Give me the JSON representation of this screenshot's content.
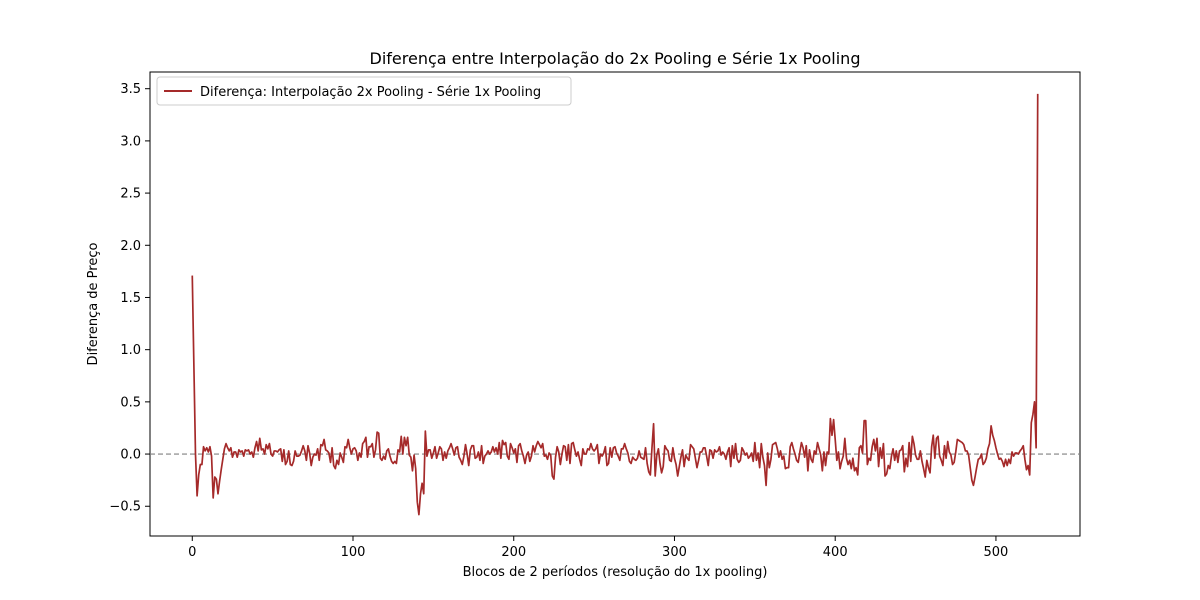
{
  "chart_data": {
    "type": "line",
    "title": "Diferença entre Interpolação do 2x Pooling e Série 1x Pooling",
    "xlabel": "Blocos de 2 períodos (resolução do 1x pooling)",
    "ylabel": "Diferença de Preço",
    "xlim": [
      -26.3,
      552.3
    ],
    "ylim": [
      -0.785,
      3.66
    ],
    "xticks": [
      0,
      100,
      200,
      300,
      400,
      500
    ],
    "yticks": [
      -0.5,
      0.0,
      0.5,
      1.0,
      1.5,
      2.0,
      2.5,
      3.0,
      3.5
    ],
    "grid": false,
    "legend_position": "upper-left",
    "reference_line": {
      "y": 0.0,
      "style": "dashed",
      "color": "#808080"
    },
    "series": [
      {
        "name": "Diferença: Interpolação 2x Pooling - Série 1x Pooling",
        "color": "#a52a2a",
        "x": [
          0,
          1,
          2,
          3,
          4,
          5,
          6,
          7,
          8,
          9,
          10,
          11,
          12,
          13,
          14,
          15,
          16,
          17,
          18,
          19,
          20,
          21,
          22,
          23,
          24,
          25,
          26,
          27,
          28,
          29,
          30,
          31,
          32,
          33,
          34,
          35,
          36,
          37,
          38,
          39,
          40,
          41,
          42,
          43,
          44,
          45,
          46,
          47,
          48,
          49,
          50,
          51,
          52,
          53,
          54,
          55,
          56,
          57,
          58,
          59,
          60,
          61,
          62,
          63,
          64,
          65,
          66,
          67,
          68,
          69,
          70,
          71,
          72,
          73,
          74,
          75,
          76,
          77,
          78,
          79,
          80,
          81,
          82,
          83,
          84,
          85,
          86,
          87,
          88,
          89,
          90,
          91,
          92,
          93,
          94,
          95,
          96,
          97,
          98,
          99,
          100,
          101,
          102,
          103,
          104,
          105,
          106,
          107,
          108,
          109,
          110,
          111,
          112,
          113,
          114,
          115,
          116,
          117,
          118,
          119,
          120,
          121,
          122,
          123,
          124,
          125,
          126,
          127,
          128,
          129,
          130,
          131,
          132,
          133,
          134,
          135,
          136,
          137,
          138,
          139,
          140,
          141,
          142,
          143,
          144,
          145,
          146,
          147,
          148,
          149,
          150,
          151,
          152,
          153,
          154,
          155,
          156,
          157,
          158,
          159,
          160,
          161,
          162,
          163,
          164,
          165,
          166,
          167,
          168,
          169,
          170,
          171,
          172,
          173,
          174,
          175,
          176,
          177,
          178,
          179,
          180,
          181,
          182,
          183,
          184,
          185,
          186,
          187,
          188,
          189,
          190,
          191,
          192,
          193,
          194,
          195,
          196,
          197,
          198,
          199,
          200,
          201,
          202,
          203,
          204,
          205,
          206,
          207,
          208,
          209,
          210,
          211,
          212,
          213,
          214,
          215,
          216,
          217,
          218,
          219,
          220,
          221,
          222,
          223,
          224,
          225,
          226,
          227,
          228,
          229,
          230,
          231,
          232,
          233,
          234,
          235,
          236,
          237,
          238,
          239,
          240,
          241,
          242,
          243,
          244,
          245,
          246,
          247,
          248,
          249,
          250,
          251,
          252,
          253,
          254,
          255,
          256,
          257,
          258,
          259,
          260,
          261,
          262,
          263,
          264,
          265,
          266,
          267,
          268,
          269,
          270,
          271,
          272,
          273,
          274,
          275,
          276,
          277,
          278,
          279,
          280,
          281,
          282,
          283,
          284,
          285,
          286,
          287,
          288,
          289,
          290,
          291,
          292,
          293,
          294,
          295,
          296,
          297,
          298,
          299,
          300,
          301,
          302,
          303,
          304,
          305,
          306,
          307,
          308,
          309,
          310,
          311,
          312,
          313,
          314,
          315,
          316,
          317,
          318,
          319,
          320,
          321,
          322,
          323,
          324,
          325,
          326,
          327,
          328,
          329,
          330,
          331,
          332,
          333,
          334,
          335,
          336,
          337,
          338,
          339,
          340,
          341,
          342,
          343,
          344,
          345,
          346,
          347,
          348,
          349,
          350,
          351,
          352,
          353,
          354,
          355,
          356,
          357,
          358,
          359,
          360,
          361,
          362,
          363,
          364,
          365,
          366,
          367,
          368,
          369,
          370,
          371,
          372,
          373,
          374,
          375,
          376,
          377,
          378,
          379,
          380,
          381,
          382,
          383,
          384,
          385,
          386,
          387,
          388,
          389,
          390,
          391,
          392,
          393,
          394,
          395,
          396,
          397,
          398,
          399,
          400,
          401,
          402,
          403,
          404,
          405,
          406,
          407,
          408,
          409,
          410,
          411,
          412,
          413,
          414,
          415,
          416,
          417,
          418,
          419,
          420,
          421,
          422,
          423,
          424,
          425,
          426,
          427,
          428,
          429,
          430,
          431,
          432,
          433,
          434,
          435,
          436,
          437,
          438,
          439,
          440,
          441,
          442,
          443,
          444,
          445,
          446,
          447,
          448,
          449,
          450,
          451,
          452,
          453,
          454,
          455,
          456,
          457,
          458,
          459,
          460,
          461,
          462,
          463,
          464,
          465,
          466,
          467,
          468,
          469,
          470,
          471,
          472,
          473,
          474,
          475,
          476,
          477,
          478,
          479,
          480,
          481,
          482,
          483,
          484,
          485,
          486,
          487,
          488,
          489,
          490,
          491,
          492,
          493,
          494,
          495,
          496,
          497,
          498,
          499,
          500,
          501,
          502,
          503,
          504,
          505,
          506,
          507,
          508,
          509,
          510,
          511,
          512,
          513,
          514,
          515,
          516,
          517,
          518,
          519,
          520,
          521,
          522,
          523,
          524,
          525,
          526
        ],
        "values": [
          1.71,
          0.85,
          0.0,
          -0.4,
          -0.2,
          -0.1,
          -0.1,
          0.07,
          0.03,
          0.06,
          0.02,
          0.07,
          -0.02,
          -0.42,
          -0.22,
          -0.24,
          -0.38,
          -0.26,
          -0.15,
          -0.05,
          0.05,
          0.1,
          0.06,
          0.03,
          0.06,
          -0.03,
          0.02,
          0.02,
          -0.03,
          0.04,
          0.02,
          0.03,
          -0.02,
          0.04,
          0.03,
          0.04,
          0.0,
          0.02,
          -0.03,
          0.06,
          0.12,
          0.03,
          0.15,
          0.04,
          0.05,
          0.0,
          0.09,
          0.05,
          0.1,
          0.0,
          -0.02,
          0.03,
          0.03,
          0.02,
          0.04,
          0.05,
          -0.07,
          0.04,
          -0.1,
          -0.07,
          0.03,
          -0.1,
          -0.11,
          -0.07,
          0.03,
          -0.02,
          -0.02,
          -0.01,
          0.03,
          0.08,
          0.03,
          -0.06,
          0.08,
          0.01,
          -0.11,
          -0.03,
          0.0,
          -0.01,
          0.05,
          -0.06,
          0.09,
          0.08,
          0.14,
          0.04,
          0.03,
          0.01,
          -0.08,
          0.06,
          -0.11,
          -0.14,
          -0.06,
          -0.1,
          0.01,
          -0.03,
          -0.08,
          0.07,
          0.06,
          0.14,
          0.06,
          0.0,
          0.05,
          0.06,
          0.03,
          -0.06,
          0.01,
          -0.03,
          0.1,
          0.12,
          0.16,
          -0.03,
          0.07,
          0.07,
          0.1,
          -0.03,
          0.04,
          0.21,
          0.2,
          -0.04,
          -0.06,
          -0.02,
          -0.05,
          0.03,
          0.05,
          -0.02,
          -0.07,
          -0.09,
          -0.07,
          -0.09,
          0.04,
          0.02,
          0.17,
          0.0,
          0.16,
          0.08,
          0.16,
          -0.01,
          -0.03,
          -0.16,
          -0.01,
          -0.14,
          -0.46,
          -0.58,
          -0.38,
          -0.28,
          -0.38,
          0.22,
          -0.02,
          0.04,
          0.04,
          -0.04,
          0.01,
          0.07,
          -0.04,
          0.01,
          0.07,
          0.05,
          -0.06,
          0.02,
          -0.04,
          0.03,
          0.06,
          0.1,
          0.05,
          -0.01,
          0.06,
          0.07,
          -0.03,
          -0.06,
          -0.1,
          -0.02,
          0.09,
          0.0,
          -0.11,
          0.04,
          0.08,
          0.08,
          -0.04,
          -0.03,
          0.02,
          -0.06,
          0.08,
          -0.09,
          -0.02,
          0.0,
          0.03,
          0.0,
          0.02,
          0.07,
          0.02,
          0.06,
          0.0,
          0.11,
          -0.04,
          0.13,
          0.09,
          0.11,
          -0.02,
          -0.05,
          0.1,
          0.06,
          0.01,
          0.05,
          -0.08,
          0.08,
          0.1,
          0.03,
          -0.02,
          -0.09,
          -0.01,
          0.02,
          -0.07,
          -0.02,
          0.08,
          0.02,
          0.08,
          0.12,
          0.09,
          0.06,
          0.1,
          -0.02,
          -0.01,
          -0.05,
          0.01,
          -0.01,
          -0.21,
          -0.24,
          -0.03,
          0.07,
          0.02,
          -0.1,
          0.0,
          0.08,
          0.07,
          -0.06,
          0.09,
          -0.09,
          0.1,
          0.11,
          0.04,
          -0.02,
          0.02,
          -0.05,
          -0.11,
          0.05,
          0.0,
          0.0,
          0.05,
          0.04,
          0.1,
          0.05,
          0.03,
          0.05,
          0.09,
          -0.09,
          0.0,
          -0.02,
          0.01,
          0.07,
          -0.11,
          -0.09,
          0.06,
          -0.03,
          0.06,
          0.07,
          0.01,
          -0.02,
          -0.06,
          0.05,
          0.05,
          0.1,
          0.05,
          0.01,
          -0.07,
          -0.09,
          -0.03,
          -0.05,
          -0.06,
          -0.04,
          0.03,
          -0.03,
          -0.04,
          -0.05,
          0.06,
          -0.09,
          -0.17,
          -0.2,
          0.06,
          0.29,
          -0.21,
          -0.01,
          0.05,
          -0.09,
          -0.18,
          -0.12,
          0.08,
          0.05,
          0.03,
          -0.06,
          -0.07,
          0.06,
          -0.04,
          -0.1,
          -0.21,
          -0.12,
          -0.03,
          0.04,
          -0.12,
          -0.01,
          -0.04,
          -0.06,
          0.09,
          0.07,
          0.05,
          -0.04,
          -0.13,
          -0.06,
          0.02,
          0.02,
          0.06,
          0.06,
          -0.02,
          -0.11,
          0.04,
          0.03,
          -0.04,
          0.04,
          0.02,
          0.03,
          0.07,
          -0.01,
          0.02,
          0.0,
          -0.05,
          0.02,
          0.06,
          -0.12,
          0.08,
          -0.04,
          0.1,
          -0.05,
          -0.08,
          -0.06,
          0.06,
          0.03,
          -0.01,
          0.01,
          -0.04,
          -0.02,
          0.01,
          -0.07,
          0.11,
          -0.06,
          0.01,
          -0.13,
          0.1,
          -0.03,
          -0.11,
          -0.3,
          0.01,
          -0.13,
          -0.05,
          0.09,
          0.1,
          0.11,
          0.05,
          -0.03,
          0.03,
          -0.05,
          -0.02,
          -0.14,
          -0.13,
          -0.13,
          0.07,
          0.11,
          0.05,
          0.0,
          -0.06,
          -0.08,
          0.02,
          0.11,
          0.06,
          -0.03,
          0.08,
          -0.16,
          0.04,
          -0.05,
          -0.08,
          0.03,
          0.0,
          0.11,
          0.05,
          -0.01,
          -0.16,
          0.02,
          -0.11,
          0.02,
          0.0,
          0.34,
          0.18,
          0.33,
          0.14,
          -0.06,
          0.02,
          -0.14,
          -0.07,
          -0.02,
          0.15,
          -0.04,
          -0.1,
          -0.06,
          -0.14,
          -0.04,
          -0.16,
          -0.13,
          -0.2,
          0.06,
          0.08,
          0.01,
          0.32,
          0.32,
          -0.1,
          -0.04,
          -0.06,
          0.07,
          0.14,
          0.03,
          0.15,
          -0.12,
          0.06,
          -0.04,
          0.1,
          -0.21,
          -0.19,
          -0.11,
          -0.14,
          -0.02,
          0.05,
          -0.06,
          0.03,
          -0.08,
          0.03,
          0.04,
          0.08,
          -0.17,
          -0.04,
          -0.12,
          0.11,
          -0.07,
          0.17,
          0.1,
          -0.01,
          -0.05,
          -0.05,
          0.03,
          -0.07,
          -0.14,
          -0.22,
          -0.06,
          -0.13,
          -0.18,
          0.07,
          0.18,
          -0.04,
          0.15,
          0.17,
          -0.02,
          -0.06,
          -0.11,
          0.08,
          -0.04,
          0.12,
          0.02,
          -0.01,
          -0.1,
          -0.08,
          0.02,
          0.14,
          0.13,
          0.12,
          0.11,
          0.09,
          0.03,
          0.03,
          -0.01,
          -0.13,
          -0.25,
          -0.3,
          -0.22,
          -0.13,
          -0.05,
          -0.04,
          0.0,
          -0.1,
          -0.08,
          -0.04,
          0.05,
          0.1,
          0.27,
          0.18,
          0.13,
          0.06,
          0.0,
          -0.05,
          -0.04,
          -0.07,
          -0.12,
          -0.05,
          -0.11,
          -0.05,
          -0.09,
          0.02,
          -0.02,
          0.01,
          0.01,
          0.0,
          0.03,
          0.05,
          0.08,
          -0.05,
          -0.15,
          -0.11,
          -0.2,
          0.3,
          0.38,
          0.5,
          0.06,
          3.45
        ]
      }
    ]
  }
}
